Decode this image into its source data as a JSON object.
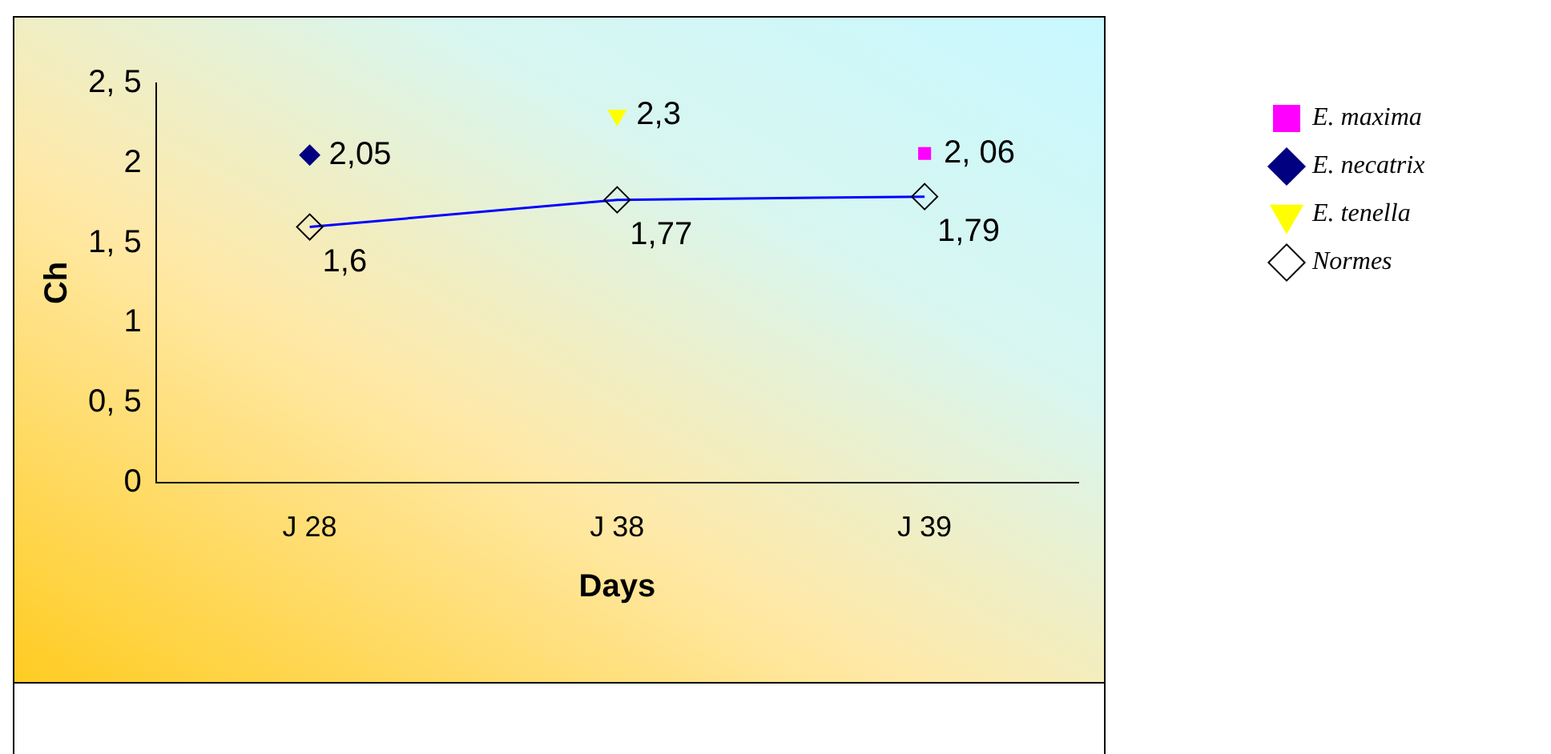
{
  "chart_data": {
    "type": "line",
    "xlabel": "Days",
    "ylabel": "Ch",
    "categories": [
      "J 28",
      "J 38",
      "J 39"
    ],
    "series": [
      {
        "name": "E. maxima",
        "type": "scatter",
        "color": "#ff00ff",
        "marker": "square",
        "values": [
          null,
          null,
          2.06
        ],
        "value_labels": [
          null,
          null,
          "2, 06"
        ]
      },
      {
        "name": "E. necatrix",
        "type": "scatter",
        "color": "#000080",
        "marker": "diamond",
        "values": [
          2.05,
          null,
          null
        ],
        "value_labels": [
          "2,05",
          null,
          null
        ]
      },
      {
        "name": "E. tenella",
        "type": "scatter",
        "color": "#ffff00",
        "marker": "triangle",
        "values": [
          null,
          2.3,
          null
        ],
        "value_labels": [
          null,
          "2,3",
          null
        ]
      },
      {
        "name": "Normes",
        "color": "#0000ff",
        "marker": "diamond",
        "values": [
          1.6,
          1.77,
          1.79
        ],
        "value_labels": [
          "1,6",
          "1,77",
          "1,79"
        ]
      }
    ],
    "ylim": [
      0,
      2.5
    ],
    "yticks": [
      {
        "value": 0,
        "label": "0"
      },
      {
        "value": 0.5,
        "label": "0, 5"
      },
      {
        "value": 1,
        "label": "1"
      },
      {
        "value": 1.5,
        "label": "1, 5"
      },
      {
        "value": 2,
        "label": "2"
      },
      {
        "value": 2.5,
        "label": "2, 5"
      }
    ],
    "grid": false,
    "legend": "top right"
  }
}
